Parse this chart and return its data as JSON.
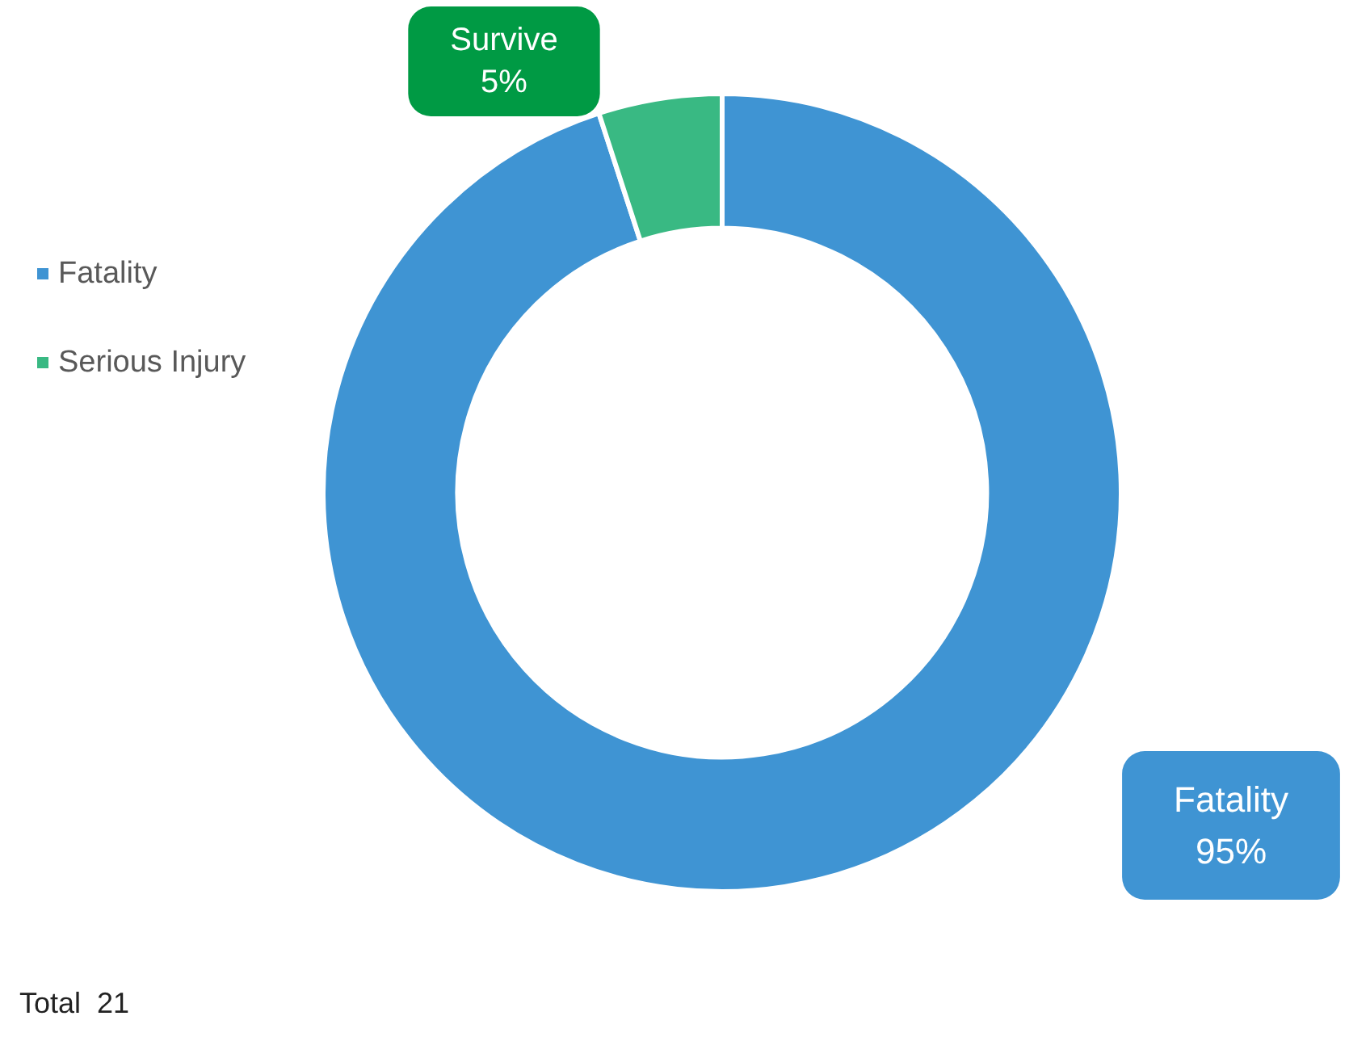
{
  "chart_data": {
    "type": "donut",
    "categories": [
      "Fatality",
      "Serious Injury"
    ],
    "values": [
      95,
      5
    ],
    "colors": [
      "#3f94d3",
      "#39b983"
    ],
    "value_labels": [
      "Fatality\n95%",
      "Survive\n5%"
    ],
    "legend": "left",
    "annotations": [
      "Total  21"
    ]
  }
}
